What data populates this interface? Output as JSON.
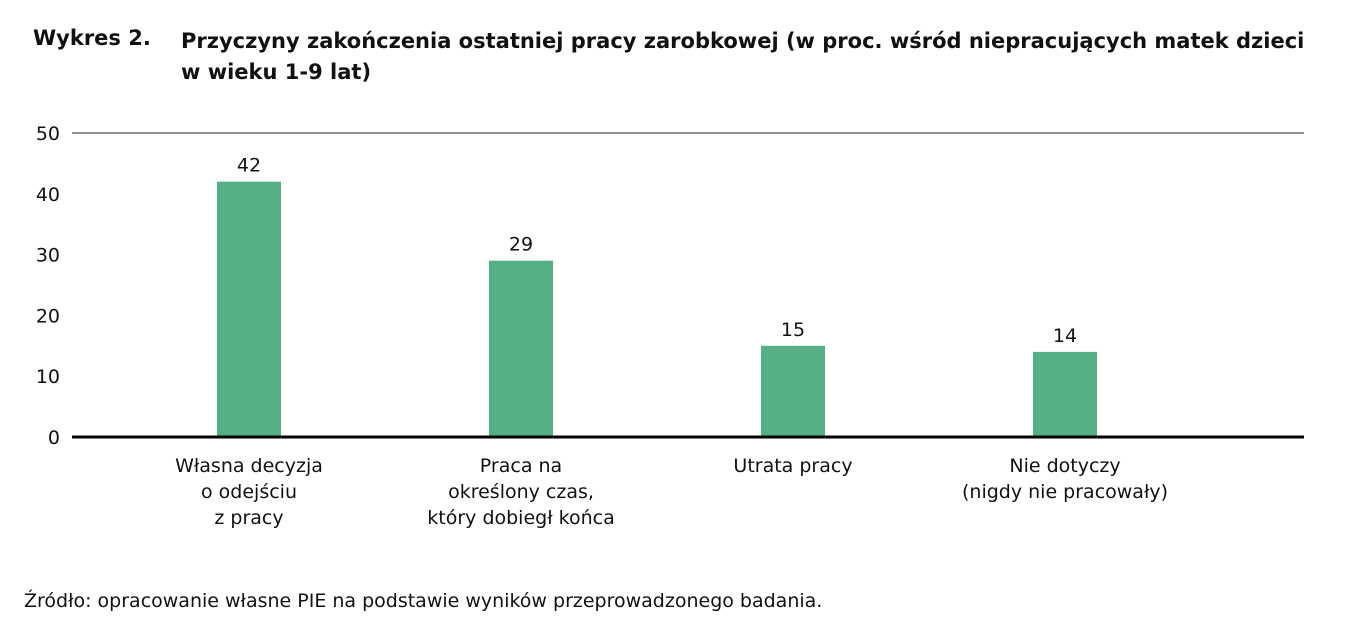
{
  "title_label": "Wykres 2.",
  "title": "Przyczyny zakończenia ostatniej pracy zarobkowej (w proc. wśród niepracujących matek dzieci w wieku 1-9 lat)",
  "source": "Źródło: opracowanie własne PIE na podstawie wyników przeprowadzonego badania.",
  "colors": {
    "bar": "#55b086",
    "axis": "#000000",
    "grid": "#222222"
  },
  "chart_data": {
    "type": "bar",
    "title": "Przyczyny zakończenia ostatniej pracy zarobkowej (w proc. wśród niepracujących matek dzieci w wieku 1-9 lat)",
    "categories": [
      [
        "Własna decyzja",
        "o odejściu",
        "z pracy"
      ],
      [
        "Praca na",
        "określony czas,",
        "który dobiegł końca"
      ],
      [
        "Utrata pracy"
      ],
      [
        "Nie dotyczy",
        "(nigdy nie pracowały)"
      ]
    ],
    "values": [
      42,
      29,
      15,
      14
    ],
    "yticks": [
      0,
      10,
      20,
      30,
      40,
      50
    ],
    "ylim": [
      0,
      50
    ],
    "grid": false,
    "legend": "none"
  }
}
